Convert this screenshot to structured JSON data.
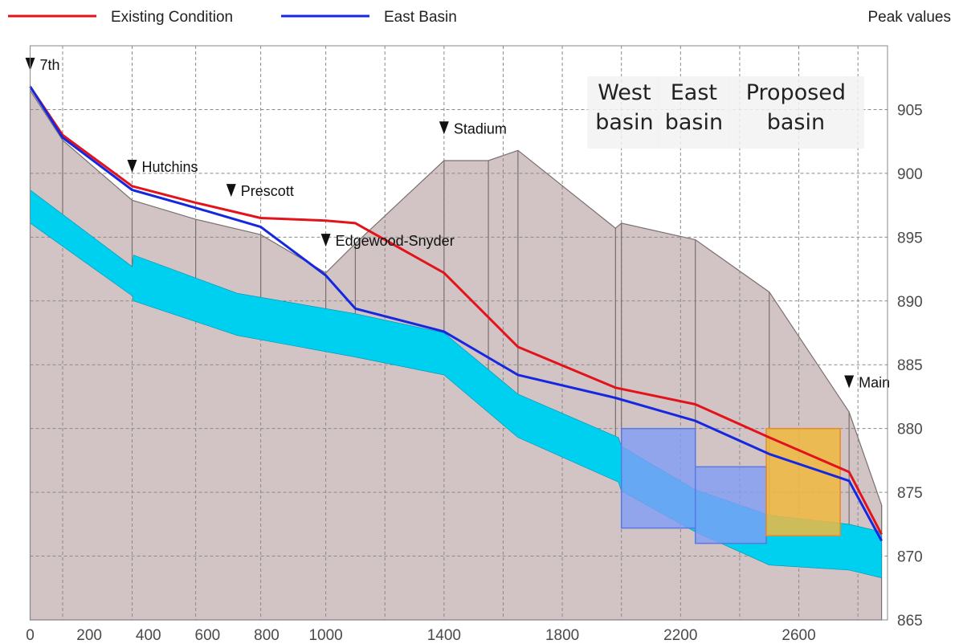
{
  "chart_data": {
    "type": "area",
    "corner_label": "Peak values",
    "xlabel": "",
    "ylabel": "",
    "xlim": [
      0,
      2900
    ],
    "ylim": [
      865,
      910
    ],
    "x_ticks": [
      0,
      200,
      400,
      600,
      800,
      1000,
      1400,
      1800,
      2200,
      2600
    ],
    "x_grid": [
      0,
      110,
      345,
      560,
      780,
      1000,
      1200,
      1400,
      1600,
      1800,
      2000,
      2200,
      2400,
      2600,
      2800
    ],
    "y_ticks": [
      865,
      870,
      875,
      880,
      885,
      890,
      895,
      900,
      905
    ],
    "grid": true,
    "legend_position": "top-left",
    "series": [
      {
        "name": "Existing Condition",
        "color": "#e3131b",
        "x": [
          0,
          110,
          345,
          560,
          780,
          1000,
          1100,
          1400,
          1650,
          1980,
          2250,
          2500,
          2770,
          2880
        ],
        "y": [
          906.8,
          903.0,
          899.0,
          897.7,
          896.5,
          896.3,
          896.1,
          892.2,
          886.4,
          883.2,
          881.9,
          879.3,
          876.6,
          871.7
        ]
      },
      {
        "name": "East Basin",
        "color": "#1528e0",
        "x": [
          0,
          110,
          345,
          560,
          780,
          1000,
          1100,
          1400,
          1650,
          1980,
          2250,
          2500,
          2770,
          2880
        ],
        "y": [
          906.8,
          902.8,
          898.7,
          897.3,
          895.8,
          892.0,
          889.4,
          887.6,
          884.2,
          882.4,
          880.6,
          878.0,
          875.9,
          871.2
        ]
      }
    ],
    "ground": {
      "color": "#d2c4c4",
      "x": [
        0,
        110,
        345,
        560,
        780,
        1000,
        1100,
        1400,
        1550,
        1650,
        1980,
        2000,
        2250,
        2500,
        2770,
        2880
      ],
      "y": [
        906.5,
        902.6,
        897.9,
        896.4,
        895.2,
        892.2,
        894.5,
        901.0,
        901.0,
        901.8,
        895.7,
        896.1,
        894.8,
        890.7,
        881.3,
        874.0
      ]
    },
    "pipe": {
      "color": "#00d0f0",
      "x": [
        0,
        345,
        350,
        700,
        1100,
        1400,
        1650,
        1990,
        2000,
        2250,
        2500,
        2770,
        2880
      ],
      "top": [
        898.7,
        892.7,
        893.6,
        890.6,
        889.0,
        887.5,
        882.7,
        879.3,
        878.6,
        875.2,
        873.2,
        872.5,
        871.9
      ],
      "bottom": [
        896.1,
        890.4,
        890.0,
        887.3,
        885.6,
        884.2,
        879.3,
        875.8,
        875.1,
        871.9,
        869.3,
        868.9,
        868.3
      ]
    },
    "markers": [
      {
        "label": "7th",
        "x": 0,
        "y": 908.5
      },
      {
        "label": "Hutchins",
        "x": 345,
        "y": 900.5
      },
      {
        "label": "Prescott",
        "x": 680,
        "y": 898.6
      },
      {
        "label": "Edgewood-Snyder",
        "x": 1000,
        "y": 894.7
      },
      {
        "label": "Stadium",
        "x": 1400,
        "y": 903.5
      },
      {
        "label": "Main",
        "x": 2770,
        "y": 883.6
      }
    ],
    "basin_labels": [
      {
        "lines": [
          "West",
          "basin"
        ],
        "x": 2010
      },
      {
        "lines": [
          "East",
          "basin"
        ],
        "x": 2245
      },
      {
        "lines": [
          "Proposed",
          "basin"
        ],
        "x": 2590
      }
    ],
    "basins": [
      {
        "label": "West basin",
        "x0": 2000,
        "x1": 2250,
        "y_top": 880.0,
        "y_bottom": 872.2,
        "color": "#7f9ef5"
      },
      {
        "label": "East basin",
        "x0": 2250,
        "x1": 2490,
        "y_top": 877.0,
        "y_bottom": 871.0,
        "color": "#7f9ef5"
      },
      {
        "label": "Proposed basin",
        "x0": 2490,
        "x1": 2740,
        "y_top": 880.0,
        "y_bottom": 871.6,
        "color": "#f0b840"
      }
    ]
  }
}
